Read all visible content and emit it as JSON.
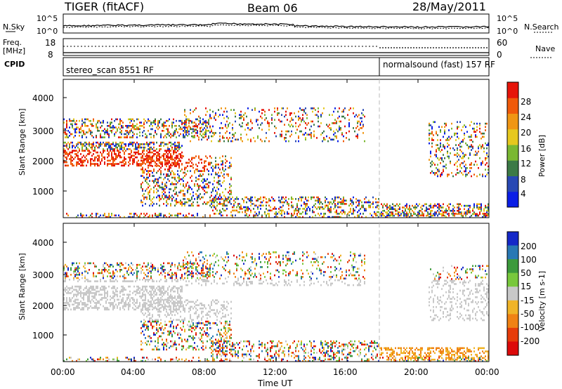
{
  "header": {
    "title": "TIGER (fitACF)",
    "beam": "Beam 06",
    "date": "28/May/2011"
  },
  "top_strips": {
    "nsky_label": "N.Sky",
    "nsky_ticks": [
      "10^5",
      "10^0"
    ],
    "nsearch_label": "N.Search",
    "freq_label_1": "Freq.",
    "freq_label_2": "[MHz]",
    "freq_ticks": [
      "18",
      "8"
    ],
    "nave_ticks": [
      "60",
      "0"
    ],
    "nave_label": "Nave",
    "cpid_label": "CPID",
    "cpid_segments": [
      "stereo_scan 8551 RF",
      "normalsound (fast) 157 RF"
    ]
  },
  "axes": {
    "ylabel": "Slant Range [km]",
    "xlabel": "Time UT",
    "yticks": [
      "1000",
      "2000",
      "3000",
      "4000"
    ],
    "xticks": [
      "00:00",
      "04:00",
      "08:00",
      "12:00",
      "16:00",
      "20:00",
      "00:00"
    ]
  },
  "colorbars": {
    "power": {
      "label": "Power [dB]",
      "ticks": [
        "4",
        "8",
        "12",
        "16",
        "20",
        "24",
        "28"
      ],
      "colors": [
        "#0a1ee6",
        "#2848b4",
        "#3c7a46",
        "#7ab832",
        "#e6c81e",
        "#f09614",
        "#f05a0a",
        "#e6140a"
      ]
    },
    "velocity": {
      "label": "Velocity [m s-1]",
      "ticks": [
        "200",
        "100",
        "50",
        "15",
        "-15",
        "-50",
        "-100",
        "-200"
      ],
      "colors": [
        "#1428c8",
        "#2878b4",
        "#3c9a3c",
        "#78c83c",
        "#c8c8c8",
        "#f0b428",
        "#f08214",
        "#e63c0a",
        "#dc0a0a"
      ]
    }
  },
  "chart_data": [
    {
      "type": "heatmap",
      "name": "Power",
      "x_range_hours": [
        0,
        24
      ],
      "ylim": [
        180,
        4600
      ],
      "ylabel": "Slant Range [km]",
      "colorbar_label": "Power [dB]",
      "colorbar_ticks": [
        4,
        8,
        12,
        16,
        20,
        24,
        28
      ]
    },
    {
      "type": "heatmap",
      "name": "Velocity",
      "x_range_hours": [
        0,
        24
      ],
      "ylim": [
        180,
        4600
      ],
      "ylabel": "Slant Range [km]",
      "xlabel": "Time UT",
      "colorbar_label": "Velocity [m s-1]",
      "colorbar_ticks": [
        200,
        100,
        50,
        15,
        -15,
        -50,
        -100,
        -200
      ]
    }
  ]
}
